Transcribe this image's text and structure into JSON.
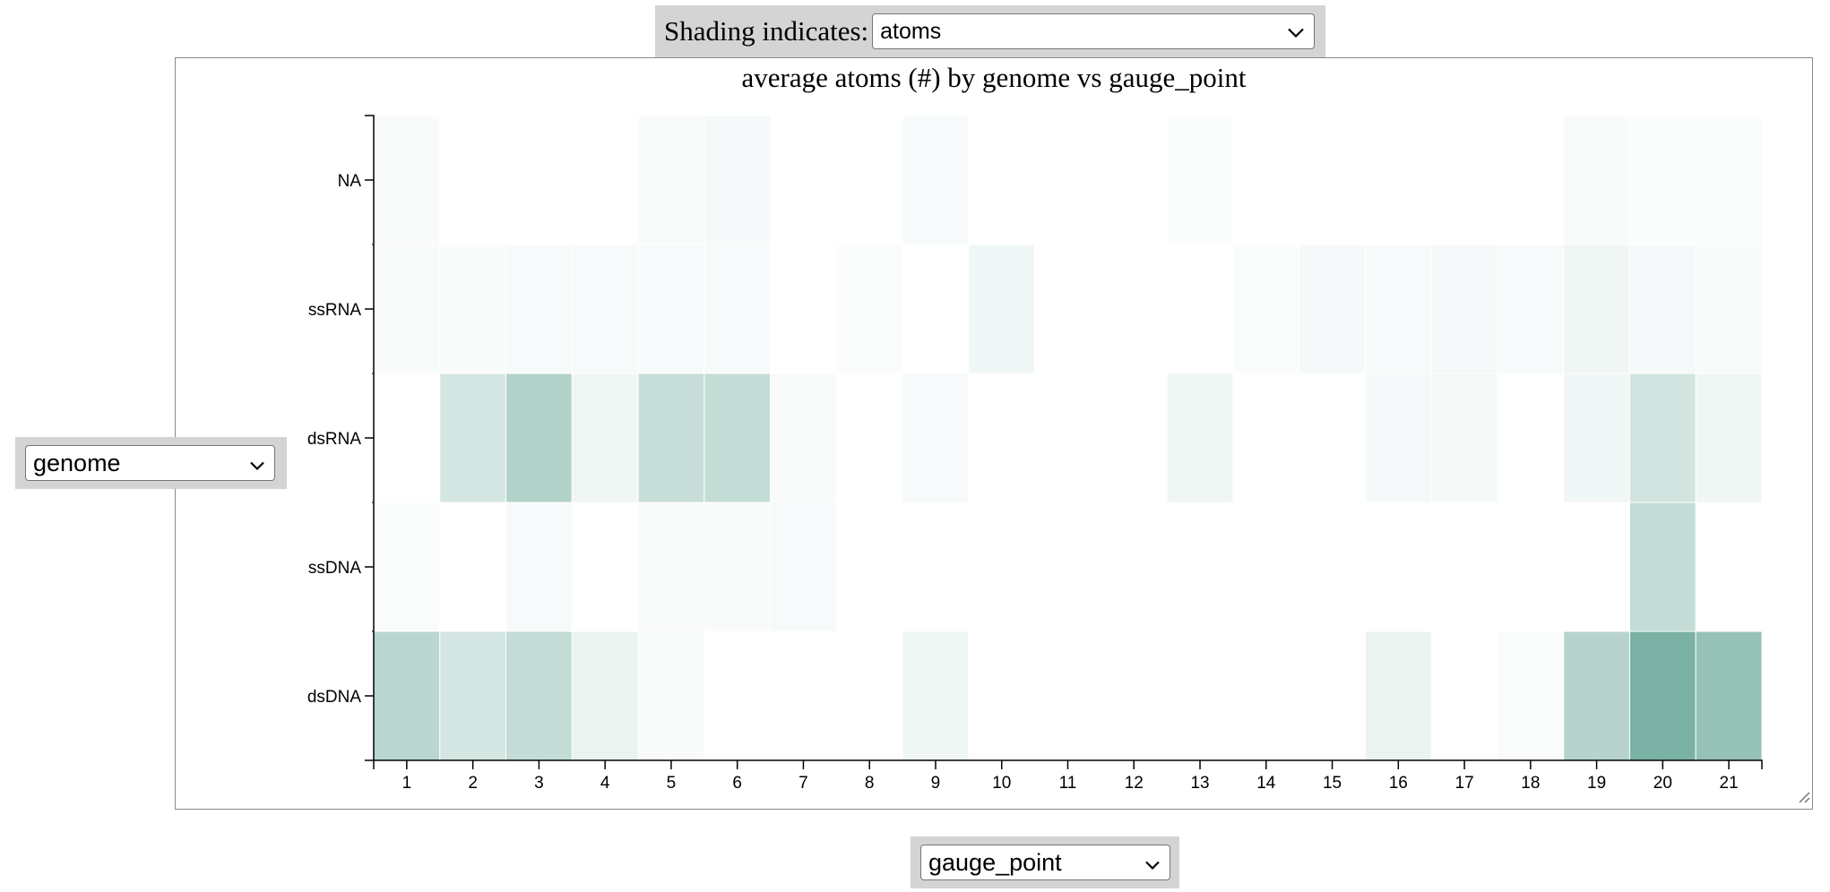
{
  "controls": {
    "shading_label": "Shading indicates:",
    "shading_value": "atoms",
    "row_variable": "genome",
    "column_variable": "gauge_point"
  },
  "icons": {
    "dropdown": "chevron-down-icon",
    "resize": "resize-grip-icon"
  },
  "colors": {
    "cell_base": "#7ab1a4",
    "background": "#ffffff",
    "control_background": "#d4d4d4"
  },
  "chart_data": {
    "type": "heatmap",
    "title": "average atoms (#) by genome vs gauge_point",
    "xlabel": "",
    "ylabel": "",
    "x": [
      "1",
      "2",
      "3",
      "4",
      "5",
      "6",
      "7",
      "8",
      "9",
      "10",
      "11",
      "12",
      "13",
      "14",
      "15",
      "16",
      "17",
      "18",
      "19",
      "20",
      "21"
    ],
    "y": [
      "NA",
      "ssRNA",
      "dsRNA",
      "ssDNA",
      "dsDNA"
    ],
    "values": [
      [
        0.05,
        0,
        0,
        0,
        0.05,
        0.07,
        0,
        0,
        0.06,
        0,
        0,
        0,
        0.04,
        0,
        0,
        0,
        0,
        0,
        0.05,
        0.03,
        0.04
      ],
      [
        0.05,
        0.05,
        0.06,
        0.06,
        0.06,
        0.06,
        0,
        0.04,
        0,
        0.1,
        0,
        0,
        0,
        0.04,
        0.07,
        0.06,
        0.07,
        0.06,
        0.12,
        0.07,
        0.05
      ],
      [
        0,
        0.32,
        0.58,
        0.12,
        0.42,
        0.45,
        0.05,
        0,
        0.06,
        0,
        0,
        0,
        0.12,
        0,
        0,
        0.07,
        0.08,
        0,
        0.1,
        0.35,
        0.12
      ],
      [
        0.04,
        0,
        0.06,
        0,
        0.05,
        0.05,
        0.06,
        0,
        0,
        0,
        0,
        0,
        0,
        0,
        0,
        0,
        0,
        0,
        0,
        0.45,
        0
      ],
      [
        0.52,
        0.32,
        0.45,
        0.15,
        0.05,
        0,
        0,
        0,
        0.12,
        0,
        0,
        0,
        0,
        0,
        0,
        0.15,
        0,
        0.04,
        0.55,
        1.0,
        0.8
      ]
    ]
  }
}
